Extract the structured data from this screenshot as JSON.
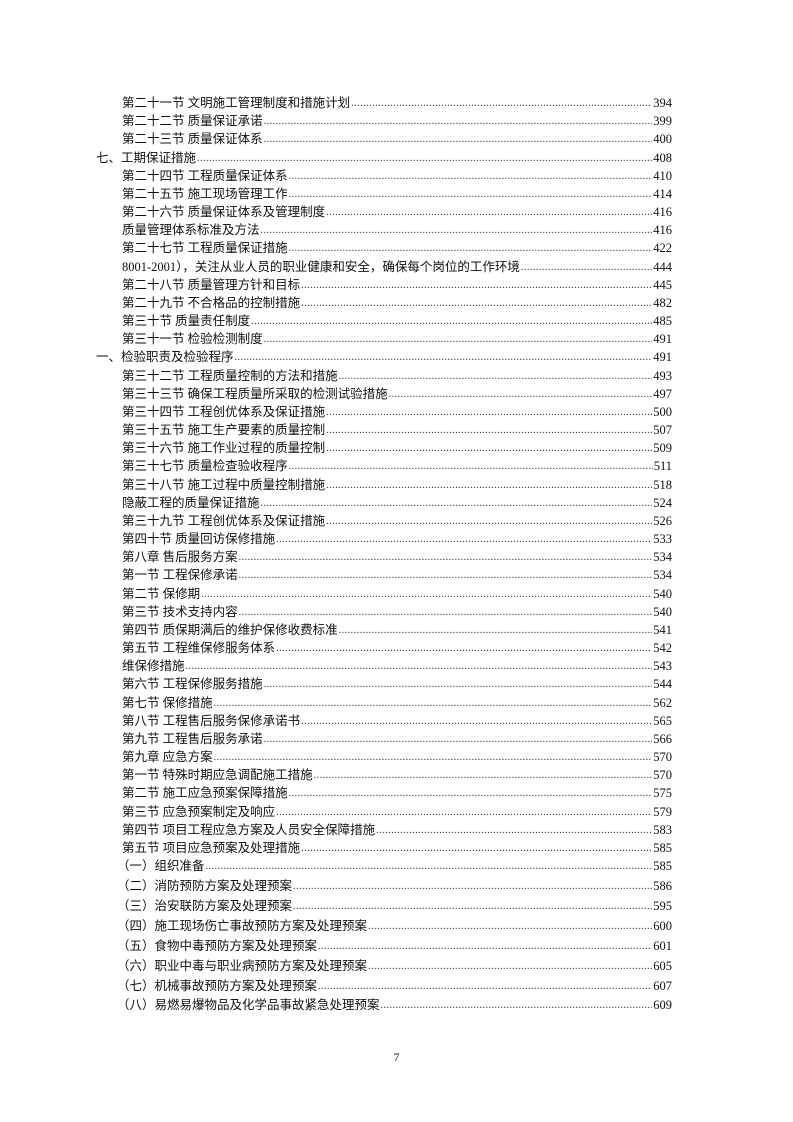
{
  "toc": [
    {
      "level": "section",
      "label": "第二十一节  文明施工管理制度和措施计划",
      "page": "394"
    },
    {
      "level": "section",
      "label": "第二十二节  质量保证承诺",
      "page": "399"
    },
    {
      "level": "section",
      "label": "第二十三节  质量保证体系",
      "page": "400"
    },
    {
      "level": "top",
      "label": "七、工期保证措施",
      "page": "408"
    },
    {
      "level": "section",
      "label": "第二十四节  工程质量保证体系",
      "page": "410"
    },
    {
      "level": "section",
      "label": "第二十五节  施工现场管理工作",
      "page": "414"
    },
    {
      "level": "section",
      "label": "第二十六节  质量保证体系及管理制度",
      "page": "416"
    },
    {
      "level": "section",
      "label": "质量管理体系标准及方法",
      "page": "416"
    },
    {
      "level": "section",
      "label": "第二十七节  工程质量保证措施",
      "page": "422"
    },
    {
      "level": "section",
      "label": "8001-2001），关注从业人员的职业健康和安全，确保每个岗位的工作环境",
      "page": "444"
    },
    {
      "level": "section",
      "label": "第二十八节  质量管理方针和目标",
      "page": "445"
    },
    {
      "level": "section",
      "label": "第二十九节  不合格品的控制措施",
      "page": "482"
    },
    {
      "level": "section",
      "label": "第三十节  质量责任制度",
      "page": "485"
    },
    {
      "level": "section",
      "label": "第三十一节  检验检测制度",
      "page": "491"
    },
    {
      "level": "top",
      "label": "一、检验职责及检验程序    ",
      "page": "491"
    },
    {
      "level": "section",
      "label": "第三十二节  工程质量控制的方法和措施",
      "page": "493"
    },
    {
      "level": "section",
      "label": "第三十三节  确保工程质量所采取的检测试验措施",
      "page": "497"
    },
    {
      "level": "section",
      "label": "第三十四节  工程创优体系及保证措施",
      "page": "500"
    },
    {
      "level": "section",
      "label": "第三十五节  施工生产要素的质量控制",
      "page": "507"
    },
    {
      "level": "section",
      "label": "第三十六节  施工作业过程的质量控制",
      "page": "509"
    },
    {
      "level": "section",
      "label": "第三十七节  质量检查验收程序",
      "page": "511"
    },
    {
      "level": "section",
      "label": "第三十八节  施工过程中质量控制措施",
      "page": "518"
    },
    {
      "level": "section",
      "label": "隐蔽工程的质量保证措施",
      "page": "524"
    },
    {
      "level": "section",
      "label": "第三十九节  工程创优体系及保证措施",
      "page": "526"
    },
    {
      "level": "section",
      "label": "第四十节  质量回访保修措施",
      "page": "533"
    },
    {
      "level": "section",
      "label": "第八章  售后服务方案",
      "page": "534"
    },
    {
      "level": "section",
      "label": "第一节  工程保修承诺",
      "page": "534"
    },
    {
      "level": "section",
      "label": "第二节  保修期",
      "page": "540"
    },
    {
      "level": "section",
      "label": "第三节  技术支持内容",
      "page": "540"
    },
    {
      "level": "section",
      "label": "第四节  质保期满后的维护保修收费标准",
      "page": "541"
    },
    {
      "level": "section",
      "label": "第五节  工程维保修服务体系",
      "page": "542"
    },
    {
      "level": "section",
      "label": "维保修措施",
      "page": "543"
    },
    {
      "level": "section",
      "label": "第六节  工程保修服务措施",
      "page": "544"
    },
    {
      "level": "section",
      "label": "第七节  保修措施",
      "page": "562"
    },
    {
      "level": "section",
      "label": "第八节  工程售后服务保修承诺书",
      "page": "565"
    },
    {
      "level": "section",
      "label": "第九节  工程售后服务承诺",
      "page": "566"
    },
    {
      "level": "section",
      "label": "第九章  应急方案",
      "page": "570"
    },
    {
      "level": "section",
      "label": "第一节  特殊时期应急调配施工措施",
      "page": "570"
    },
    {
      "level": "section",
      "label": "第二节  施工应急预案保障措施",
      "page": "575"
    },
    {
      "level": "section",
      "label": "第三节  应急预案制定及响应",
      "page": "579"
    },
    {
      "level": "section",
      "label": "第四节  项目工程应急方案及人员安全保障措施",
      "page": "583"
    },
    {
      "level": "section",
      "label": "第五节  项目应急预案及处理措施",
      "page": "585"
    },
    {
      "level": "sub",
      "label": "（一）组织准备",
      "page": "585"
    },
    {
      "level": "sub",
      "label": "（二）消防预防方案及处理预案",
      "page": "586"
    },
    {
      "level": "sub",
      "label": "（三）治安联防方案及处理预案",
      "page": "595"
    },
    {
      "level": "sub",
      "label": "（四）施工现场伤亡事故预防方案及处理预案",
      "page": "600"
    },
    {
      "level": "sub",
      "label": "（五）食物中毒预防方案及处理预案",
      "page": "601"
    },
    {
      "level": "sub",
      "label": "（六）职业中毒与职业病预防方案及处理预案",
      "page": "605"
    },
    {
      "level": "sub",
      "label": "（七）机械事故预防方案及处理预案",
      "page": "607"
    },
    {
      "level": "sub",
      "label": "（八）易燃易爆物品及化学品事故紧急处理预案",
      "page": "609"
    }
  ],
  "footer": {
    "page_number": "7"
  }
}
